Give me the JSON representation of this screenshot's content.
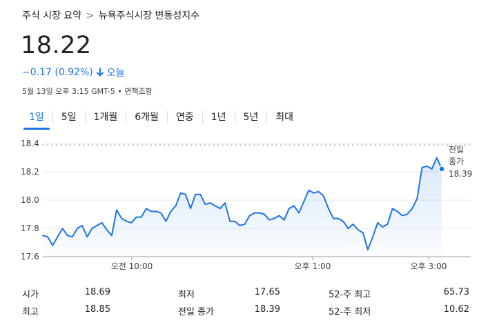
{
  "breadcrumb": {
    "parent": "주식 시장 요약",
    "separator": ">",
    "current": "뉴욕주식시장 변동성지수"
  },
  "quote": {
    "price": "18.22",
    "change": "−0.17 (0.92%)",
    "period": "오늘",
    "timestamp": "5월 13일 오후 3:15 GMT-5 • 면책조항",
    "direction_color": "#1a73e8"
  },
  "tabs": [
    {
      "label": "1일",
      "active": true
    },
    {
      "label": "5일",
      "active": false
    },
    {
      "label": "1개월",
      "active": false
    },
    {
      "label": "6개월",
      "active": false
    },
    {
      "label": "연중",
      "active": false
    },
    {
      "label": "1년",
      "active": false
    },
    {
      "label": "5년",
      "active": false
    },
    {
      "label": "최대",
      "active": false
    }
  ],
  "chart_data": {
    "type": "area",
    "x_tick_labels": [
      "오전 10:00",
      "오후 1:00",
      "오후 3:00"
    ],
    "y_tick_labels": [
      "18.4",
      "18.2",
      "18.0",
      "17.8",
      "17.6"
    ],
    "ylim": [
      17.6,
      18.4
    ],
    "grid": true,
    "line_color": "#1a73e8",
    "previous_close": {
      "label_line1": "전일",
      "label_line2": "종가",
      "value": "18.39"
    },
    "values": [
      17.75,
      17.74,
      17.68,
      17.74,
      17.8,
      17.75,
      17.74,
      17.8,
      17.82,
      17.74,
      17.8,
      17.82,
      17.84,
      17.79,
      17.75,
      17.93,
      17.87,
      17.85,
      17.84,
      17.88,
      17.88,
      17.94,
      17.92,
      17.92,
      17.91,
      17.85,
      17.92,
      17.96,
      18.05,
      18.04,
      17.94,
      18.04,
      18.04,
      17.97,
      17.98,
      17.96,
      17.94,
      17.98,
      17.85,
      17.85,
      17.82,
      17.83,
      17.89,
      17.91,
      17.91,
      17.9,
      17.86,
      17.87,
      17.89,
      17.86,
      17.94,
      17.96,
      17.91,
      17.99,
      18.07,
      18.05,
      18.06,
      18.03,
      17.94,
      17.87,
      17.87,
      17.85,
      17.8,
      17.83,
      17.79,
      17.77,
      17.65,
      17.74,
      17.84,
      17.81,
      17.83,
      17.94,
      17.92,
      17.89,
      17.9,
      17.94,
      18.01,
      18.23,
      18.24,
      18.22,
      18.3,
      18.22
    ]
  },
  "stats": {
    "rows": [
      [
        {
          "label": "시가",
          "value": "18.69"
        },
        {
          "label": "최저",
          "value": "17.65"
        },
        {
          "label": "52-주 최고",
          "value": "65.73"
        }
      ],
      [
        {
          "label": "최고",
          "value": "18.85"
        },
        {
          "label": "전일 종가",
          "value": "18.39"
        },
        {
          "label": "52-주 최저",
          "value": "10.62"
        }
      ]
    ]
  }
}
